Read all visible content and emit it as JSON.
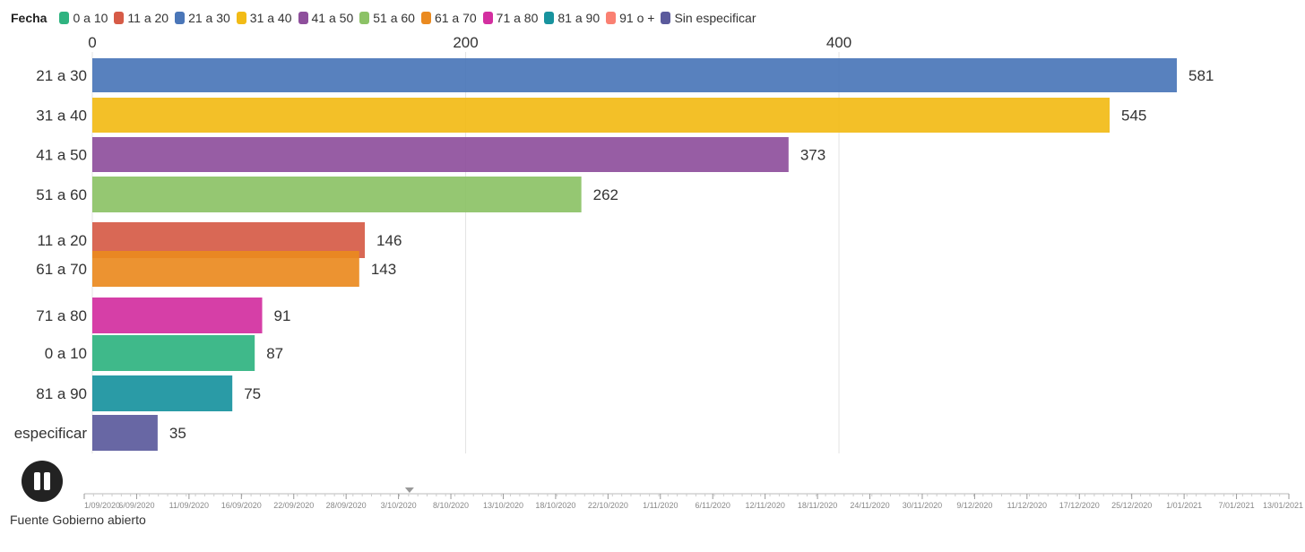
{
  "legend": {
    "title": "Fecha",
    "items": [
      {
        "label": "0 a 10",
        "color": "#2fb380"
      },
      {
        "label": "11 a 20",
        "color": "#d65b47"
      },
      {
        "label": "21 a 30",
        "color": "#4a76b8"
      },
      {
        "label": "31 a 40",
        "color": "#f2bb16"
      },
      {
        "label": "41 a 50",
        "color": "#8e4f9c"
      },
      {
        "label": "51 a 60",
        "color": "#8cc266"
      },
      {
        "label": "61 a 70",
        "color": "#ea8a20"
      },
      {
        "label": "71 a 80",
        "color": "#d32fa0"
      },
      {
        "label": "81 a 90",
        "color": "#18939e"
      },
      {
        "label": "91 o +",
        "color": "#fa8072"
      },
      {
        "label": "Sin especificar",
        "color": "#5b5a9c"
      }
    ]
  },
  "chart_data": {
    "type": "bar",
    "orientation": "horizontal",
    "title": "",
    "xlabel": "",
    "ylabel": "",
    "xlim": [
      0,
      581
    ],
    "xticks": [
      0,
      200,
      400
    ],
    "grid": true,
    "legend_position": "top",
    "categories": [
      "21 a 30",
      "31 a 40",
      "41 a 50",
      "51 a 60",
      "11 a 20",
      "61 a 70",
      "71 a 80",
      "0 a 10",
      "81 a 90",
      "Sin especificar"
    ],
    "values": [
      581,
      545,
      373,
      262,
      146,
      143,
      91,
      87,
      75,
      35
    ],
    "colors": [
      "#4a76b8",
      "#f2bb16",
      "#8e4f9c",
      "#8cc266",
      "#d65b47",
      "#ea8a20",
      "#d32fa0",
      "#2fb380",
      "#18939e",
      "#5b5a9c"
    ]
  },
  "timeline": {
    "dates": [
      "1/09/2020",
      "6/09/2020",
      "11/09/2020",
      "16/09/2020",
      "22/09/2020",
      "28/09/2020",
      "3/10/2020",
      "8/10/2020",
      "13/10/2020",
      "18/10/2020",
      "22/10/2020",
      "1/11/2020",
      "6/11/2020",
      "12/11/2020",
      "18/11/2020",
      "24/11/2020",
      "30/11/2020",
      "9/12/2020",
      "11/12/2020",
      "17/12/2020",
      "25/12/2020",
      "1/01/2021",
      "7/01/2021",
      "13/01/2021"
    ],
    "current_position": 0.27
  },
  "play_state": "playing",
  "source": "Fuente Gobierno abierto"
}
